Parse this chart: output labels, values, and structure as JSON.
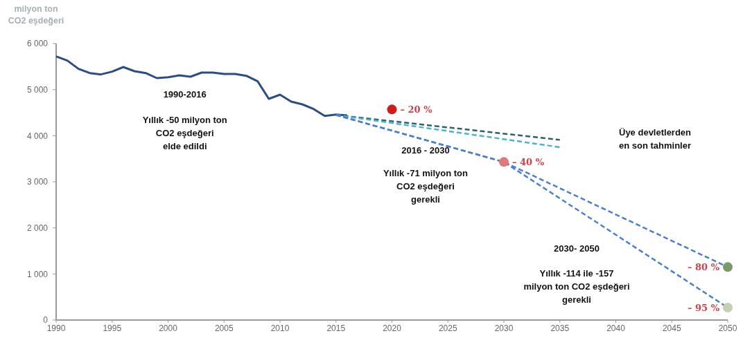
{
  "chart_data": {
    "type": "line",
    "ylabel": "milyon ton\nCO2 eşdeğeri",
    "xlim": [
      1990,
      2050
    ],
    "xticks": [
      1990,
      1995,
      2000,
      2005,
      2010,
      2015,
      2020,
      2025,
      2030,
      2035,
      2040,
      2045,
      2050
    ],
    "ylim": [
      0,
      6000
    ],
    "yticks": [
      0,
      {
        "value": 1000,
        "label": "1 000"
      },
      {
        "value": 2000,
        "label": "2 000"
      },
      {
        "value": 3000,
        "label": "3 000"
      },
      {
        "value": 4000,
        "label": "4 000"
      },
      {
        "value": 5000,
        "label": "5 000"
      },
      {
        "value": 6000,
        "label": "6 000"
      }
    ],
    "grid": false,
    "marker": "none",
    "series": [
      {
        "color": "#2b4c86",
        "line_style": "solid",
        "x": [
          1990,
          1991,
          1992,
          1993,
          1994,
          1995,
          1996,
          1997,
          1998,
          1999,
          2000,
          2001,
          2002,
          2003,
          2004,
          2005,
          2006,
          2007,
          2008,
          2009,
          2010,
          2011,
          2012,
          2013,
          2014,
          2015,
          2016
        ],
        "values": [
          5720,
          5630,
          5450,
          5360,
          5330,
          5390,
          5490,
          5400,
          5360,
          5250,
          5270,
          5310,
          5280,
          5370,
          5370,
          5340,
          5340,
          5300,
          5180,
          4800,
          4890,
          4740,
          4680,
          4580,
          4430,
          4460,
          4440
        ]
      },
      {
        "color": "#2e5f6e",
        "line_style": "dashed",
        "x": [
          2015,
          2035
        ],
        "values": [
          4450,
          3910
        ]
      },
      {
        "color": "#4ab3d1",
        "line_style": "dashed",
        "x": [
          2015,
          2035
        ],
        "values": [
          4450,
          3750
        ]
      },
      {
        "color": "#4a7fd0",
        "line_style": "dashed",
        "x": [
          2015,
          2030,
          2050
        ],
        "values": [
          4450,
          3430,
          1150
        ]
      },
      {
        "color": "#4a7fd0",
        "line_style": "dashed",
        "x": [
          2015,
          2030,
          2050
        ],
        "values": [
          4450,
          3430,
          270
        ]
      },
      {
        "type": "scatter",
        "marker": "circle",
        "x": [
          2020,
          2030,
          2050,
          2050
        ],
        "values": [
          4570,
          3430,
          1150,
          270
        ],
        "colors": [
          "#d01c1c",
          "#e07a7a",
          "#7a9a6a",
          "#c4d0b4"
        ]
      }
    ],
    "annotations": [
      {
        "text": "– 20 %",
        "x": 2020,
        "y": 4570
      },
      {
        "text": "– 40 %",
        "x": 2030,
        "y": 3430
      },
      {
        "text": "– 80 %",
        "x": 2050,
        "y": 1150
      },
      {
        "text": "– 95 %",
        "x": 2050,
        "y": 270
      },
      "1990-2016",
      "Yıllık -50 milyon ton\nCO2 eşdeğeri\nelde edildi",
      "2016 - 2030",
      "Yıllık -71 milyon ton\nCO2 eşdeğeri\ngerekli",
      "2030- 2050",
      "Yıllık -114 ile -157\nmilyon ton CO2 eşdeğeri\ngerekli",
      "Üye devletlerden\nen son tahminler"
    ]
  }
}
